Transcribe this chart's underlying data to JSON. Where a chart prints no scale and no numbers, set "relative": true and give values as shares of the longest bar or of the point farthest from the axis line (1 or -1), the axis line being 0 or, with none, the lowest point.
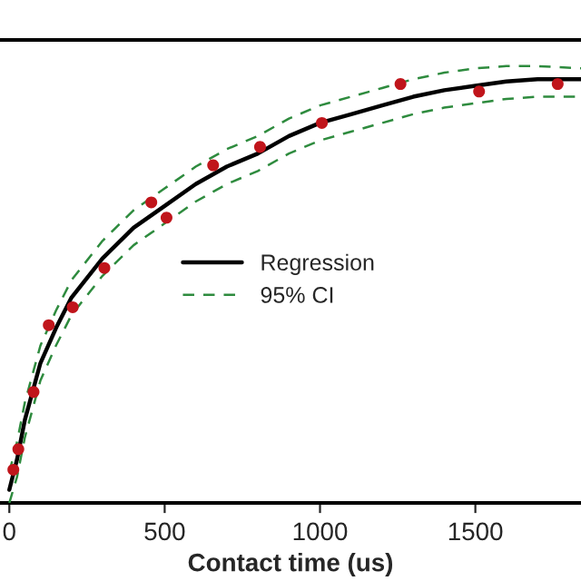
{
  "chart_data": {
    "type": "line",
    "xlabel": "Contact time (us)",
    "relative": true,
    "xlim": [
      -30,
      1840
    ],
    "xticks": [
      0,
      500,
      1000,
      1500
    ],
    "tick_labels": "x",
    "grid": false,
    "legend": "center",
    "series": [
      {
        "type": "scatter",
        "marker": "circle",
        "color": "#c0151b",
        "x": [
          13,
          29,
          78,
          127,
          204,
          306,
          457,
          506,
          656,
          807,
          1006,
          1259,
          1512,
          1765
        ],
        "values": [
          0.076,
          0.123,
          0.254,
          0.407,
          0.448,
          0.538,
          0.688,
          0.653,
          0.773,
          0.815,
          0.87,
          0.959,
          0.942,
          0.959
        ]
      },
      {
        "name": "Regression",
        "color": "#000000",
        "line_style": "solid",
        "x": [
          0,
          25,
          50,
          100,
          150,
          200,
          300,
          400,
          500,
          600,
          700,
          800,
          900,
          1000,
          1100,
          1200,
          1300,
          1400,
          1500,
          1600,
          1700,
          1840
        ],
        "values": [
          0.03,
          0.1,
          0.19,
          0.32,
          0.4,
          0.47,
          0.56,
          0.63,
          0.68,
          0.73,
          0.77,
          0.8,
          0.84,
          0.87,
          0.89,
          0.91,
          0.93,
          0.945,
          0.955,
          0.965,
          0.97,
          0.97
        ]
      },
      {
        "name": "95% CI",
        "color": "#2e8b3e",
        "line_style": "dashed",
        "x": [
          0,
          25,
          50,
          100,
          150,
          200,
          300,
          400,
          500,
          600,
          700,
          800,
          900,
          1000,
          1100,
          1200,
          1300,
          1400,
          1500,
          1600,
          1700,
          1840
        ],
        "values": [
          0.07,
          0.14,
          0.23,
          0.36,
          0.44,
          0.51,
          0.6,
          0.67,
          0.72,
          0.77,
          0.81,
          0.84,
          0.88,
          0.91,
          0.93,
          0.95,
          0.97,
          0.985,
          0.995,
          1.0,
          1.0,
          0.995
        ]
      },
      {
        "color": "#2e8b3e",
        "line_style": "dashed",
        "x": [
          0,
          25,
          50,
          100,
          150,
          200,
          300,
          400,
          500,
          600,
          700,
          800,
          900,
          1000,
          1100,
          1200,
          1300,
          1400,
          1500,
          1600,
          1700,
          1840
        ],
        "values": [
          0.0,
          0.06,
          0.15,
          0.28,
          0.36,
          0.43,
          0.52,
          0.59,
          0.64,
          0.69,
          0.73,
          0.76,
          0.8,
          0.83,
          0.85,
          0.87,
          0.89,
          0.905,
          0.915,
          0.925,
          0.93,
          0.93
        ]
      }
    ]
  }
}
